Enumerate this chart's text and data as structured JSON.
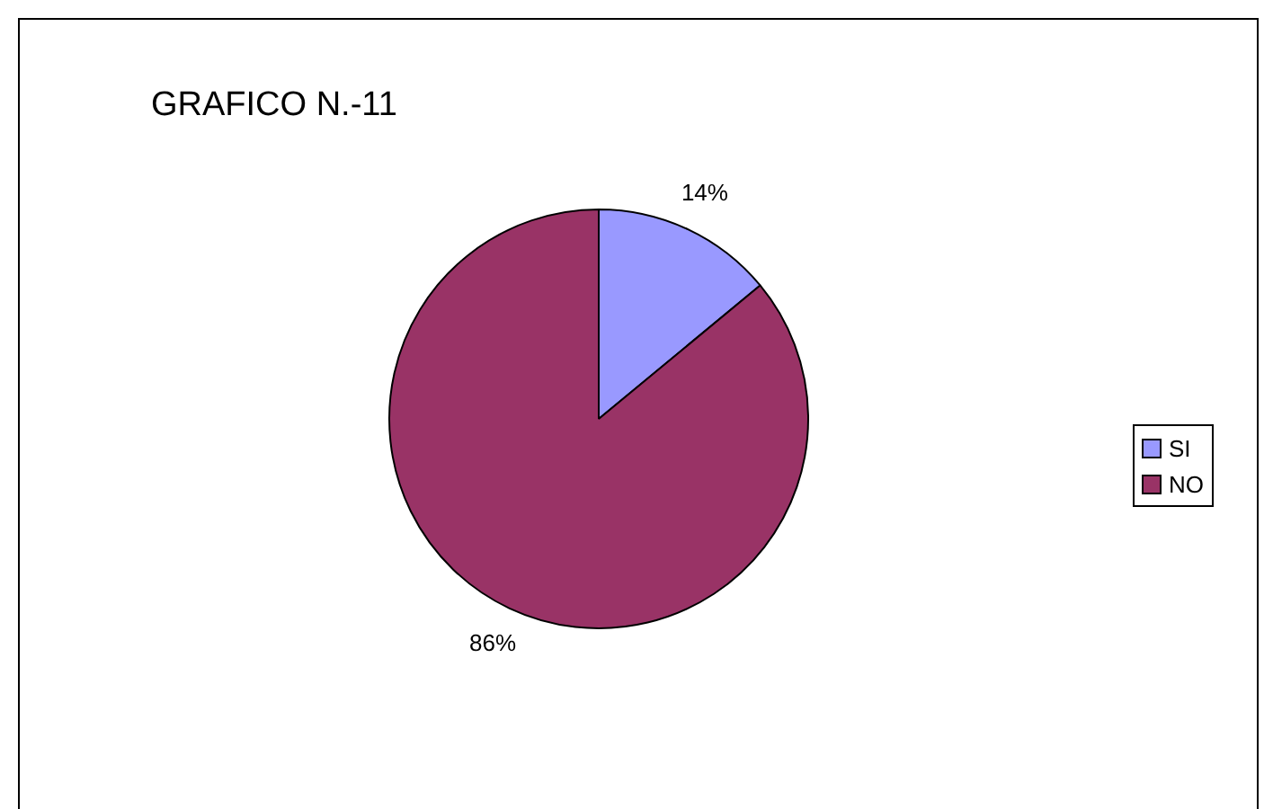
{
  "chart_data": {
    "type": "pie",
    "title": "GRAFICO N.-11",
    "categories": [
      "SI",
      "NO"
    ],
    "values": [
      14,
      86
    ],
    "value_labels": [
      "14%",
      "86%"
    ],
    "colors": [
      "#9999ff",
      "#993366"
    ],
    "legend": "right"
  }
}
